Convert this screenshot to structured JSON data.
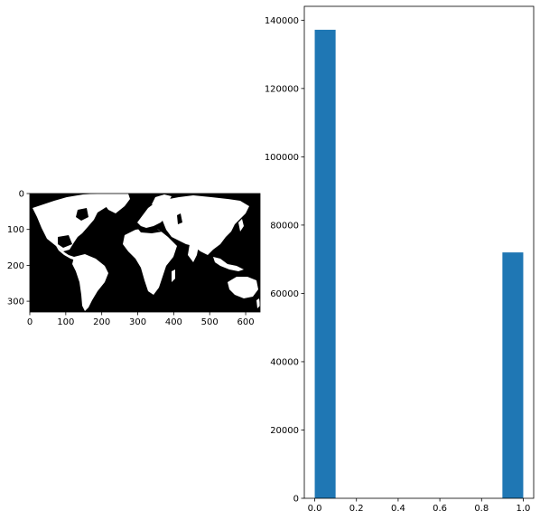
{
  "chart_data": [
    {
      "type": "image",
      "content": "black-and-white world map raster",
      "xlim": [
        0,
        640
      ],
      "ylim": [
        330,
        0
      ],
      "xticks": [
        0,
        100,
        200,
        300,
        400,
        500,
        600
      ],
      "xtick_labels": [
        "0",
        "100",
        "200",
        "300",
        "400",
        "500",
        "600"
      ],
      "yticks": [
        0,
        100,
        200,
        300
      ],
      "ytick_labels": [
        "0",
        "100",
        "200",
        "300"
      ],
      "title": "",
      "xlabel": "",
      "ylabel": "",
      "colors": {
        "land": "#ffffff",
        "ocean": "#000000"
      }
    },
    {
      "type": "bar",
      "subtype": "histogram",
      "bins": [
        {
          "x0": 0.0,
          "x1": 0.1,
          "value": 137200
        },
        {
          "x0": 0.1,
          "x1": 0.2,
          "value": 0
        },
        {
          "x0": 0.2,
          "x1": 0.3,
          "value": 0
        },
        {
          "x0": 0.3,
          "x1": 0.4,
          "value": 0
        },
        {
          "x0": 0.4,
          "x1": 0.5,
          "value": 0
        },
        {
          "x0": 0.5,
          "x1": 0.6,
          "value": 0
        },
        {
          "x0": 0.6,
          "x1": 0.7,
          "value": 0
        },
        {
          "x0": 0.7,
          "x1": 0.8,
          "value": 0
        },
        {
          "x0": 0.8,
          "x1": 0.9,
          "value": 0
        },
        {
          "x0": 0.9,
          "x1": 1.0,
          "value": 72000
        }
      ],
      "xlim": [
        -0.05,
        1.05
      ],
      "ylim": [
        0,
        144060
      ],
      "xticks": [
        0.0,
        0.2,
        0.4,
        0.6,
        0.8,
        1.0
      ],
      "xtick_labels": [
        "0.0",
        "0.2",
        "0.4",
        "0.6",
        "0.8",
        "1.0"
      ],
      "yticks": [
        0,
        20000,
        40000,
        60000,
        80000,
        100000,
        120000,
        140000
      ],
      "ytick_labels": [
        "0",
        "20000",
        "40000",
        "60000",
        "80000",
        "100000",
        "120000",
        "140000"
      ],
      "title": "",
      "xlabel": "",
      "ylabel": "",
      "grid": false,
      "colors": {
        "bar": "#1f77b4"
      }
    }
  ]
}
